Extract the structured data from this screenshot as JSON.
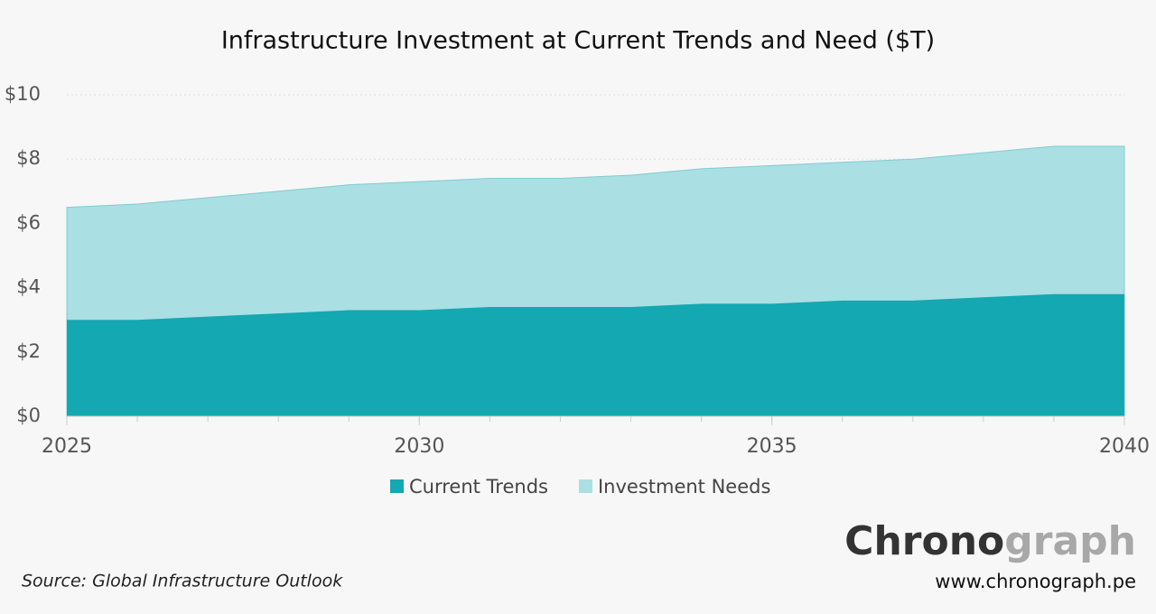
{
  "chart_data": {
    "type": "area",
    "title": "Infrastructure Investment at Current Trends and Need ($T)",
    "x": [
      2025,
      2026,
      2027,
      2028,
      2029,
      2030,
      2031,
      2032,
      2033,
      2034,
      2035,
      2036,
      2037,
      2038,
      2039,
      2040
    ],
    "series": [
      {
        "name": "Current Trends",
        "color": "#13a8b2",
        "values": [
          3.0,
          3.0,
          3.1,
          3.2,
          3.3,
          3.3,
          3.4,
          3.4,
          3.4,
          3.5,
          3.5,
          3.6,
          3.6,
          3.7,
          3.8,
          3.8
        ]
      },
      {
        "name": "Investment Needs",
        "color": "#aadfe3",
        "values": [
          6.5,
          6.6,
          6.8,
          7.0,
          7.2,
          7.3,
          7.4,
          7.4,
          7.5,
          7.7,
          7.8,
          7.9,
          8.0,
          8.2,
          8.4,
          8.4
        ]
      }
    ],
    "xlim": [
      2025,
      2040
    ],
    "xticks": [
      2025,
      2030,
      2035,
      2040
    ],
    "ylim": [
      0,
      10
    ],
    "yticks": [
      {
        "value": 0,
        "label": "$0"
      },
      {
        "value": 2,
        "label": "$2"
      },
      {
        "value": 4,
        "label": "$4"
      },
      {
        "value": 6,
        "label": "$6"
      },
      {
        "value": 8,
        "label": "$8"
      },
      {
        "value": 10,
        "label": "$10"
      }
    ],
    "grid": true
  },
  "source": "Source: Global Infrastructure Outlook",
  "brand": {
    "dark": "Chrono",
    "light": "graph"
  },
  "url": "www.chronograph.pe"
}
